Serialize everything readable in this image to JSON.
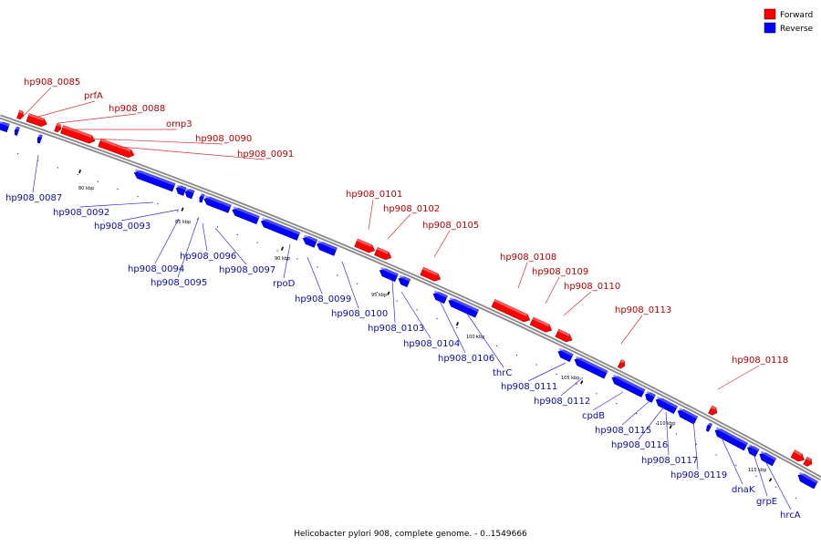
{
  "caption": "Helicobacter pylori 908, complete genome. - 0..1549666",
  "legend": [
    {
      "label": "Forward",
      "color": "#ff0000"
    },
    {
      "label": "Reverse",
      "color": "#0000ff"
    }
  ],
  "kbp_marks": [
    {
      "label": "80 kbp"
    },
    {
      "label": "85 kbp"
    },
    {
      "label": "90 kbp"
    },
    {
      "label": "95 kbp"
    },
    {
      "label": "100 kbp"
    },
    {
      "label": "105 kbp"
    },
    {
      "label": "110 kbp"
    },
    {
      "label": "115 kbp"
    }
  ],
  "forward_labels": [
    "hp908_0085",
    "prfA",
    "hp908_0088",
    "omp3",
    "hp908_0090",
    "hp908_0091",
    "hp908_0101",
    "hp908_0102",
    "hp908_0105",
    "hp908_0108",
    "hp908_0109",
    "hp908_0110",
    "hp908_0113",
    "hp908_0118"
  ],
  "reverse_labels": [
    "hp908_0087",
    "hp908_0092",
    "hp908_0093",
    "hp908_0094",
    "hp908_0095",
    "hp908_0096",
    "hp908_0097",
    "rpoD",
    "hp908_0099",
    "hp908_0100",
    "hp908_0103",
    "hp908_0104",
    "hp908_0106",
    "thrC",
    "hp908_0111",
    "hp908_0112",
    "cpdB",
    "hp908_0115",
    "hp908_0116",
    "hp908_0117",
    "hp908_0119",
    "dnaK",
    "grpE",
    "hrcA"
  ]
}
